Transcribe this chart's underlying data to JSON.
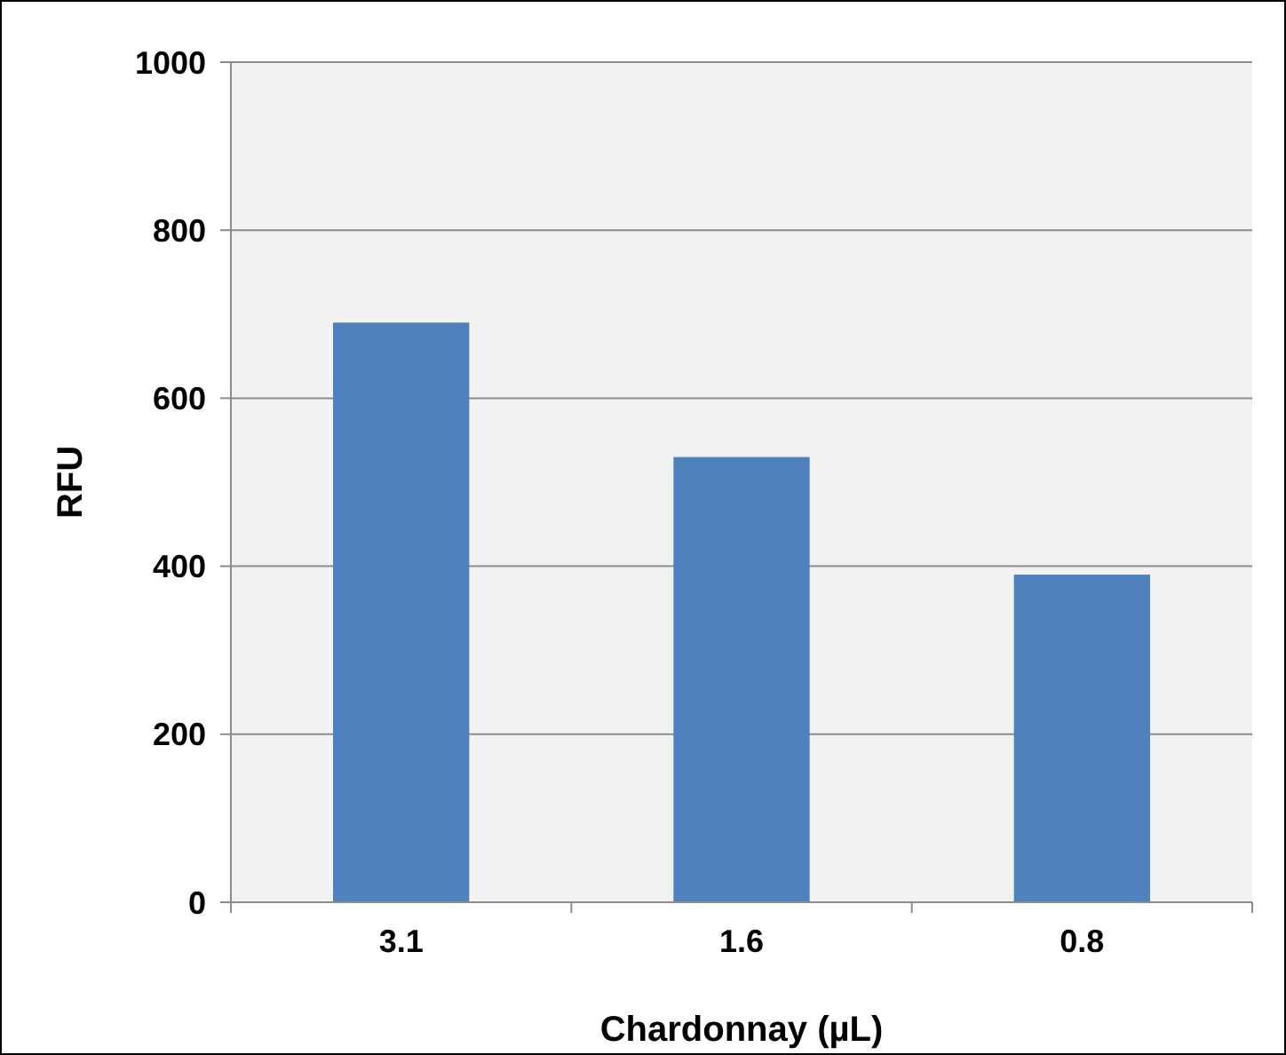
{
  "chart_data": {
    "type": "bar",
    "xlabel": "Chardonnay (µL)",
    "ylabel": "RFU",
    "categories": [
      "3.1",
      "1.6",
      "0.8"
    ],
    "values": [
      690,
      530,
      390
    ],
    "color": "#4f81bd",
    "ylim": [
      0,
      1000
    ],
    "yticks": [
      0,
      200,
      400,
      600,
      800,
      1000
    ],
    "grid": "y"
  }
}
